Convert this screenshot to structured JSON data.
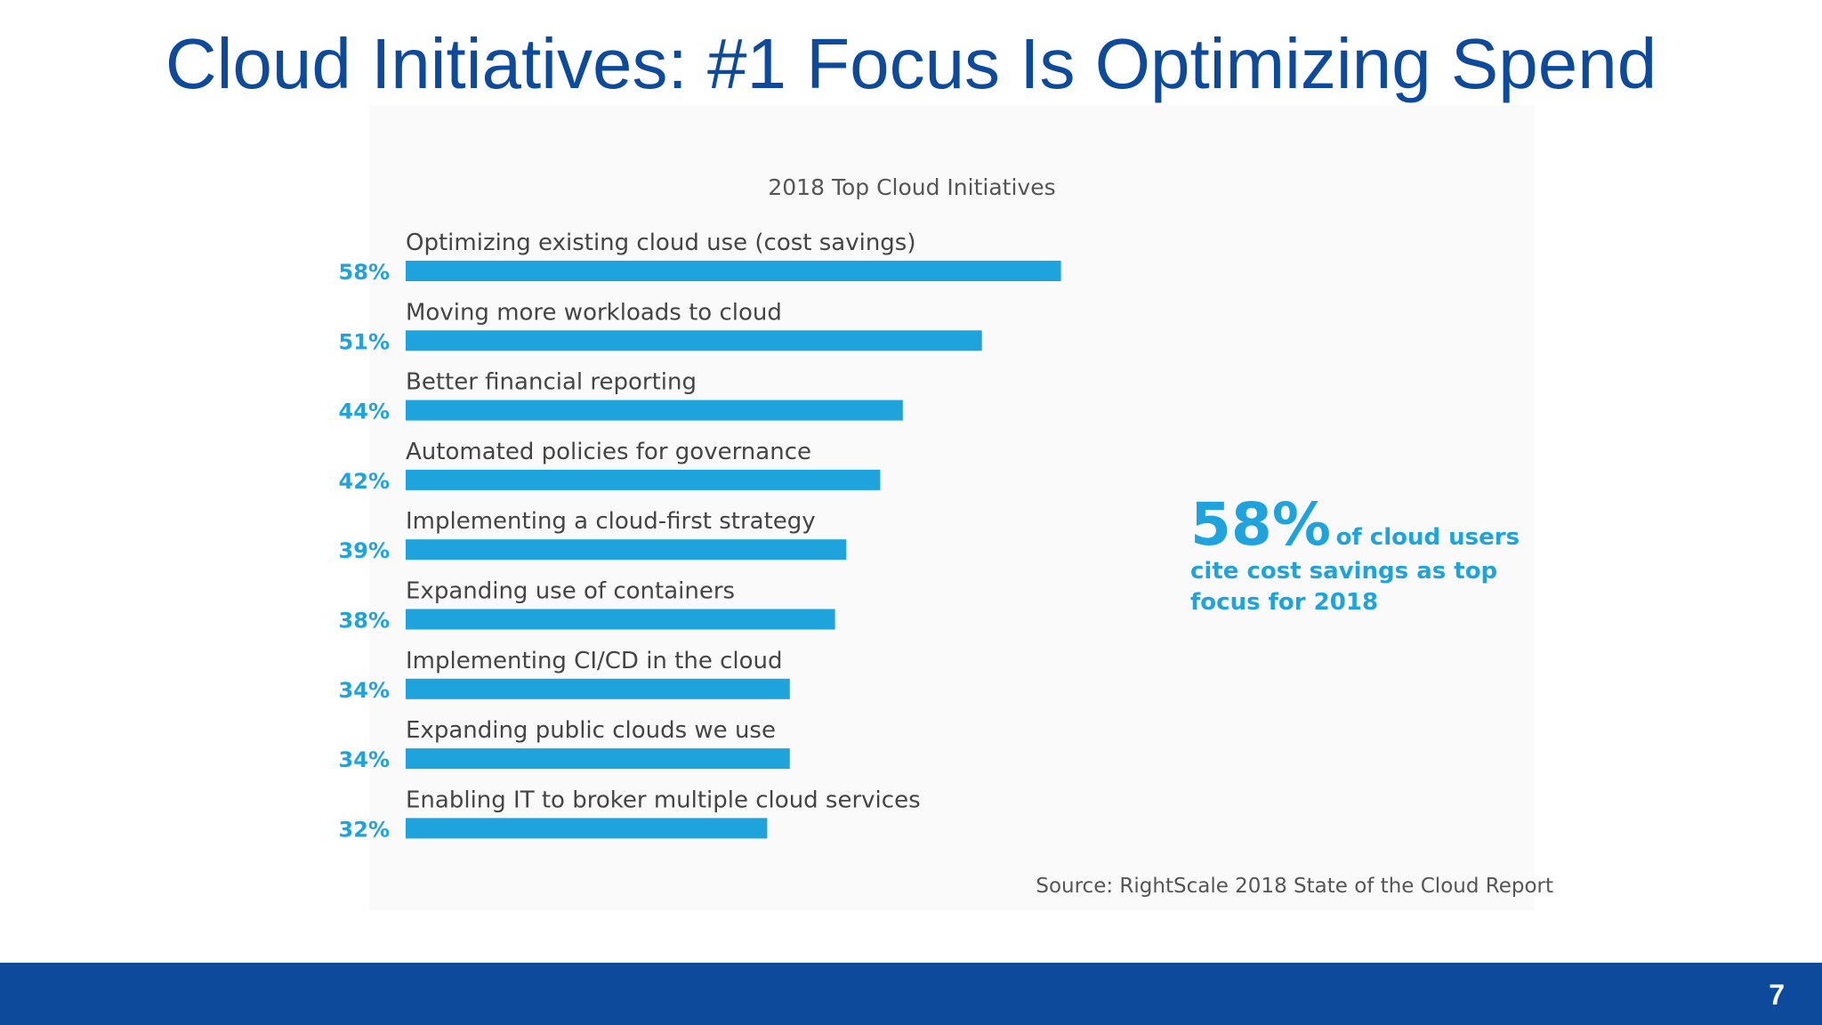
{
  "slide": {
    "title": "Cloud Initiatives: #1 Focus Is Optimizing Spend",
    "page_number": "7",
    "footer_color": "#0d4a9c",
    "title_color": "#0d4a9c"
  },
  "callout": {
    "big": "58%",
    "rest": "of cloud users",
    "line2": "cite cost savings as top",
    "line3": "focus for 2018",
    "color": "#1fa3dd"
  },
  "chart_data": {
    "type": "bar",
    "orientation": "horizontal",
    "title": "2018 Top Cloud Initiatives",
    "categories": [
      "Optimizing existing cloud use (cost savings)",
      "Moving more workloads to cloud",
      "Better financial reporting",
      "Automated policies for governance",
      "Implementing a cloud-first strategy",
      "Expanding use of containers",
      "Implementing CI/CD in the cloud",
      "Expanding public clouds we use",
      "Enabling IT to broker multiple cloud services"
    ],
    "values": [
      58,
      51,
      44,
      42,
      39,
      38,
      34,
      34,
      32
    ],
    "value_labels": [
      "58%",
      "51%",
      "44%",
      "42%",
      "39%",
      "38%",
      "34%",
      "34%",
      "32%"
    ],
    "unit": "%",
    "bar_color": "#1fa3dd",
    "grid": false,
    "source": "Source: RightScale 2018 State of the Cloud Report"
  }
}
